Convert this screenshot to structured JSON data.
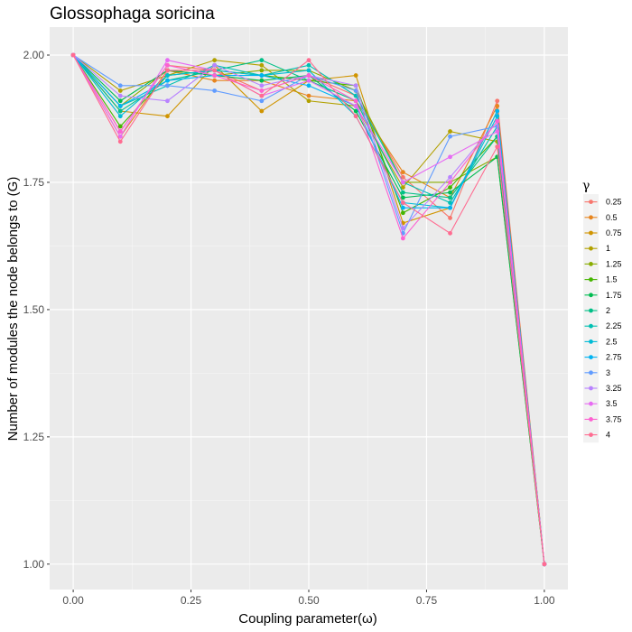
{
  "chart_data": {
    "type": "line",
    "title": "Glossophaga soricina",
    "xlabel": "Coupling parameter(ω)",
    "ylabel": "Number of modules the node belongs to (G)",
    "xlim": [
      -0.05,
      1.05
    ],
    "ylim": [
      0.95,
      2.055
    ],
    "x_ticks": [
      0.0,
      0.25,
      0.5,
      0.75,
      1.0
    ],
    "x_tick_labels": [
      "0.00",
      "0.25",
      "0.50",
      "0.75",
      "1.00"
    ],
    "y_ticks": [
      1.0,
      1.25,
      1.5,
      1.75,
      2.0
    ],
    "y_tick_labels": [
      "1.00",
      "1.25",
      "1.50",
      "1.75",
      "2.00"
    ],
    "grid": true,
    "legend_title": "γ",
    "legend_position": "right",
    "x": [
      0.0,
      0.1,
      0.2,
      0.3,
      0.4,
      0.5,
      0.6,
      0.7,
      0.8,
      0.9,
      1.0
    ],
    "series": [
      {
        "name": "0.25",
        "color": "#F8766D",
        "values": [
          2.0,
          1.85,
          1.98,
          1.97,
          1.93,
          1.96,
          1.92,
          1.76,
          1.68,
          1.91,
          1.0
        ]
      },
      {
        "name": "0.5",
        "color": "#E7851E",
        "values": [
          2.0,
          1.84,
          1.97,
          1.95,
          1.95,
          1.92,
          1.91,
          1.77,
          1.72,
          1.9,
          1.0
        ]
      },
      {
        "name": "0.75",
        "color": "#D09400",
        "values": [
          2.0,
          1.89,
          1.88,
          1.98,
          1.89,
          1.95,
          1.96,
          1.67,
          1.7,
          1.89,
          1.0
        ]
      },
      {
        "name": "1",
        "color": "#B2A100",
        "values": [
          2.0,
          1.93,
          1.96,
          1.99,
          1.98,
          1.91,
          1.9,
          1.74,
          1.85,
          1.83,
          1.0
        ]
      },
      {
        "name": "1.25",
        "color": "#89AC00",
        "values": [
          2.0,
          1.9,
          1.97,
          1.96,
          1.97,
          1.97,
          1.93,
          1.75,
          1.75,
          1.8,
          1.0
        ]
      },
      {
        "name": "1.5",
        "color": "#45B500",
        "values": [
          2.0,
          1.86,
          1.96,
          1.97,
          1.96,
          1.95,
          1.94,
          1.69,
          1.74,
          1.84,
          1.0
        ]
      },
      {
        "name": "1.75",
        "color": "#00BC51",
        "values": [
          2.0,
          1.91,
          1.97,
          1.96,
          1.95,
          1.96,
          1.89,
          1.72,
          1.73,
          1.8,
          1.0
        ]
      },
      {
        "name": "2",
        "color": "#00C087",
        "values": [
          2.0,
          1.89,
          1.95,
          1.97,
          1.99,
          1.95,
          1.91,
          1.73,
          1.72,
          1.84,
          1.0
        ]
      },
      {
        "name": "2.25",
        "color": "#00C0B2",
        "values": [
          2.0,
          1.9,
          1.94,
          1.98,
          1.96,
          1.98,
          1.92,
          1.75,
          1.71,
          1.86,
          1.0
        ]
      },
      {
        "name": "2.5",
        "color": "#00BCD6",
        "values": [
          2.0,
          1.88,
          1.96,
          1.97,
          1.96,
          1.97,
          1.88,
          1.71,
          1.7,
          1.88,
          1.0
        ]
      },
      {
        "name": "2.75",
        "color": "#00B3F2",
        "values": [
          2.0,
          1.9,
          1.95,
          1.96,
          1.96,
          1.94,
          1.9,
          1.7,
          1.7,
          1.89,
          1.0
        ]
      },
      {
        "name": "3",
        "color": "#619CFF",
        "values": [
          2.0,
          1.94,
          1.94,
          1.93,
          1.91,
          1.96,
          1.93,
          1.65,
          1.84,
          1.86,
          1.0
        ]
      },
      {
        "name": "3.25",
        "color": "#B983FF",
        "values": [
          2.0,
          1.92,
          1.91,
          1.98,
          1.94,
          1.96,
          1.94,
          1.66,
          1.76,
          1.87,
          1.0
        ]
      },
      {
        "name": "3.5",
        "color": "#E76BF3",
        "values": [
          2.0,
          1.84,
          1.99,
          1.97,
          1.92,
          1.95,
          1.9,
          1.75,
          1.8,
          1.85,
          1.0
        ]
      },
      {
        "name": "3.75",
        "color": "#FD61D1",
        "values": [
          2.0,
          1.85,
          1.98,
          1.96,
          1.93,
          1.96,
          1.91,
          1.64,
          1.75,
          1.87,
          1.0
        ]
      },
      {
        "name": "4",
        "color": "#FF6C91",
        "values": [
          2.0,
          1.83,
          1.97,
          1.97,
          1.92,
          1.99,
          1.88,
          1.71,
          1.65,
          1.82,
          1.0
        ]
      }
    ]
  }
}
